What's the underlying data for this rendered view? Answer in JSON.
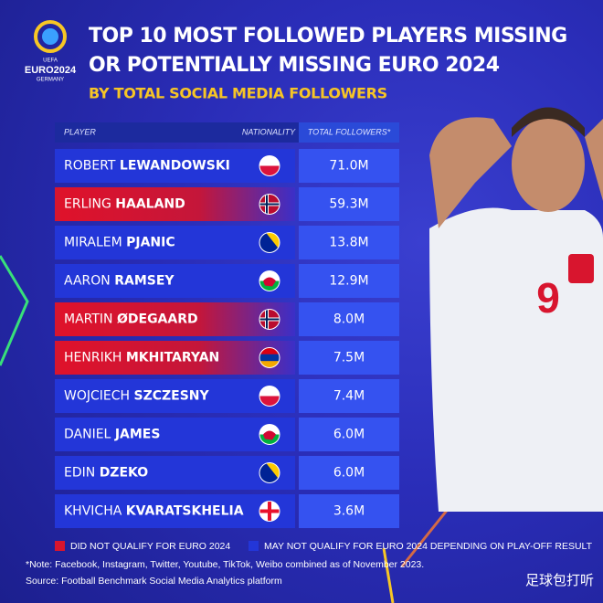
{
  "logo": {
    "brand": "UEFA",
    "name": "EURO2024",
    "place": "GERMANY"
  },
  "header": {
    "title_line1": "TOP 10 MOST FOLLOWED PLAYERS MISSING",
    "title_line2": "OR POTENTIALLY MISSING EURO 2024",
    "subtitle": "BY TOTAL SOCIAL MEDIA FOLLOWERS"
  },
  "table": {
    "columns": [
      "PLAYER",
      "NATIONALITY",
      "TOTAL FOLLOWERS*"
    ],
    "rows": [
      {
        "first": "ROBERT",
        "last": "LEWANDOWSKI",
        "followers": "71.0M",
        "color": "#2336d8"
      },
      {
        "first": "ERLING",
        "last": "HAALAND",
        "followers": "59.3M",
        "color": "#d8152e"
      },
      {
        "first": "MIRALEM",
        "last": "PJANIC",
        "followers": "13.8M",
        "color": "#2336d8"
      },
      {
        "first": "AARON",
        "last": "RAMSEY",
        "followers": "12.9M",
        "color": "#2336d8"
      },
      {
        "first": "MARTIN",
        "last": "ØDEGAARD",
        "followers": "8.0M",
        "color": "#d8152e"
      },
      {
        "first": "HENRIKH",
        "last": "MKHITARYAN",
        "followers": "7.5M",
        "color": "#d8152e"
      },
      {
        "first": "WOJCIECH",
        "last": "SZCZESNY",
        "followers": "7.4M",
        "color": "#2336d8"
      },
      {
        "first": "DANIEL",
        "last": "JAMES",
        "followers": "6.0M",
        "color": "#2336d8"
      },
      {
        "first": "EDIN",
        "last": "DZEKO",
        "followers": "6.0M",
        "color": "#2336d8"
      },
      {
        "first": "KHVICHA",
        "last": "KVARATSKHELIA",
        "followers": "3.6M",
        "color": "#2336d8"
      }
    ]
  },
  "legend": [
    {
      "label": "DID NOT QUALIFY FOR EURO 2024",
      "color": "#d8152e"
    },
    {
      "label": "MAY NOT QUALIFY FOR EURO 2024 DEPENDING ON PLAY-OFF RESULT",
      "color": "#2336d8"
    }
  ],
  "note": "*Note: Facebook, Instagram, Twitter, Youtube, TikTok, Weibo combined as of November 2023.",
  "source": "Source: Football Benchmark Social Media Analytics platform",
  "watermark": "足球包打听"
}
